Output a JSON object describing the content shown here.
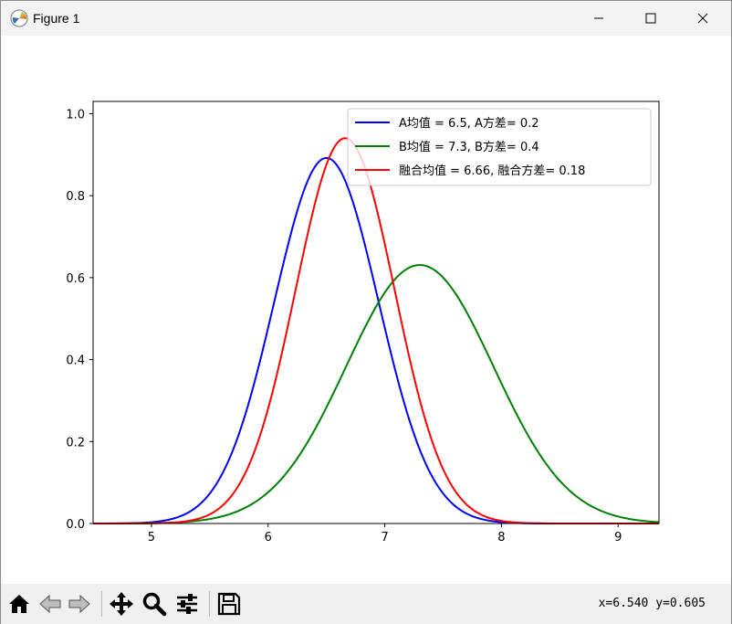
{
  "window": {
    "title": "Figure 1"
  },
  "toolbar": {
    "tools": [
      "home-icon",
      "back-icon",
      "forward-icon",
      "pan-icon",
      "zoom-icon",
      "configure-subplots-icon",
      "save-icon"
    ],
    "coords": "x=6.540 y=0.605"
  },
  "chart_data": {
    "type": "line",
    "title": "",
    "xlabel": "",
    "ylabel": "",
    "xlim": [
      4.5,
      9.35
    ],
    "ylim": [
      0.0,
      1.03
    ],
    "xticks": [
      5,
      6,
      7,
      8,
      9
    ],
    "xtick_labels": [
      "5",
      "6",
      "7",
      "8",
      "9"
    ],
    "yticks": [
      0.0,
      0.2,
      0.4,
      0.6,
      0.8,
      1.0
    ],
    "ytick_labels": [
      "0.0",
      "0.2",
      "0.4",
      "0.6",
      "0.8",
      "1.0"
    ],
    "grid": false,
    "legend_position": "top-right",
    "series": [
      {
        "name": "A均值 = 6.5, A方差= 0.2",
        "color": "#0000ff",
        "mean": 6.5,
        "variance": 0.2
      },
      {
        "name": "B均值 = 7.3, B方差= 0.4",
        "color": "#008000",
        "mean": 7.3,
        "variance": 0.4
      },
      {
        "name": "融合均值 = 6.66, 融合方差= 0.18",
        "color": "#ff0000",
        "mean": 6.66,
        "variance": 0.18
      }
    ]
  }
}
